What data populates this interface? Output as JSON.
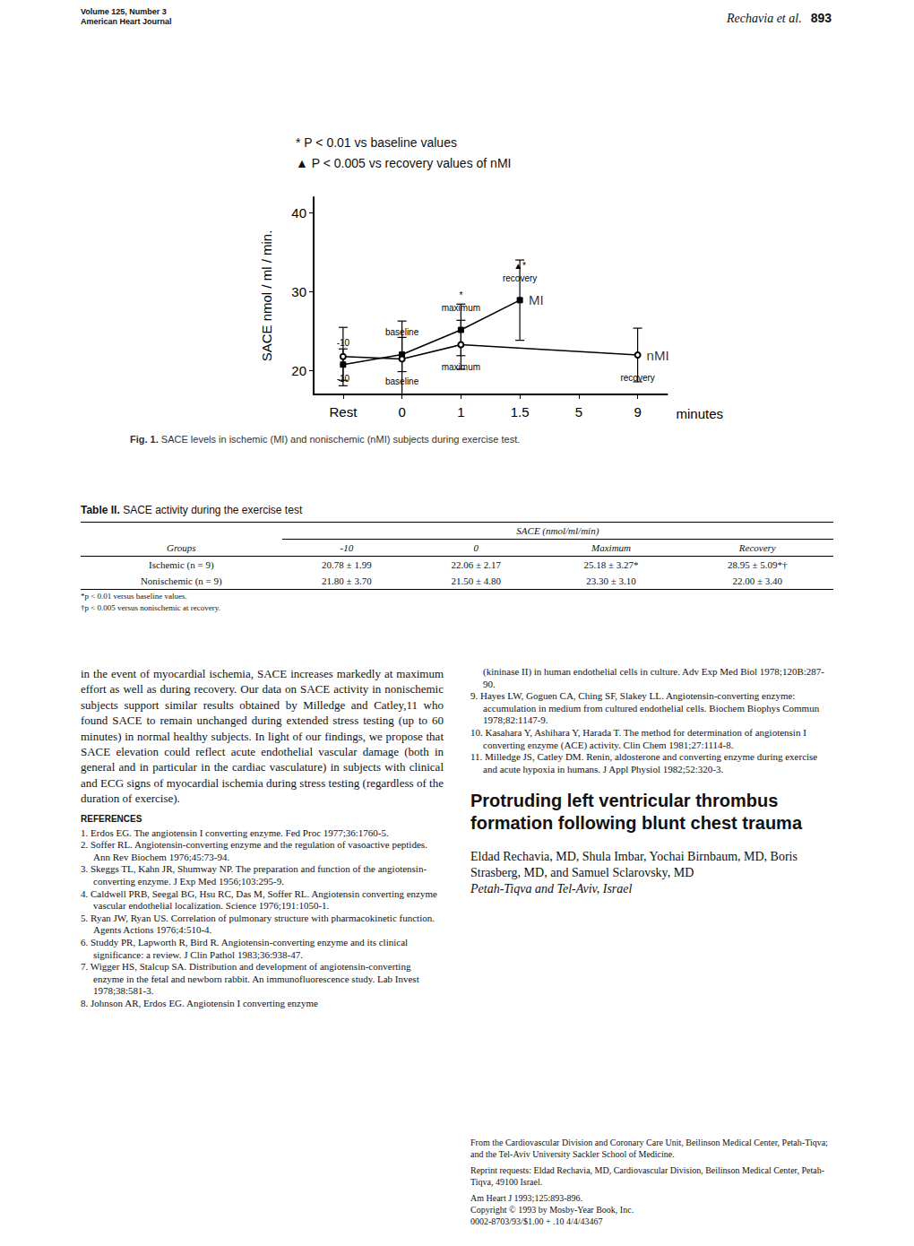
{
  "page": {
    "header": {
      "volume": "Volume 125, Number 3",
      "journal": "American Heart Journal",
      "running_head": "Rechavia et al.",
      "page_number": "893"
    },
    "figure": {
      "label": "Fig. 1.",
      "caption": "SACE levels in ischemic (MI) and nonischemic (nMI) subjects during exercise test."
    },
    "table": {
      "label": "Table II.",
      "title": "SACE activity during the exercise test",
      "group_header": "SACE (nmol/ml/min)",
      "columns": [
        "Groups",
        "-10",
        "0",
        "Maximum",
        "Recovery"
      ],
      "rows": [
        [
          "Ischemic (n = 9)",
          "20.78 ± 1.99",
          "22.06 ± 2.17",
          "25.18 ± 3.27*",
          "28.95 ± 5.09*†"
        ],
        [
          "Nonischemic (n = 9)",
          "21.80 ± 3.70",
          "21.50 ± 4.80",
          "23.30 ± 3.10",
          "22.00 ± 3.40"
        ]
      ],
      "footnotes": [
        "*p < 0.01 versus baseline values.",
        "†p < 0.005 versus nonischemic at recovery."
      ]
    },
    "left_column": {
      "body": "in the event of myocardial ischemia, SACE increases markedly at maximum effort as well as during recovery. Our data on SACE activity in nonischemic subjects support similar results obtained by Milledge and Catley,11 who found SACE to remain unchanged during extended stress testing (up to 60 minutes) in normal healthy subjects. In light of our findings, we propose that SACE elevation could reflect acute endothelial vascular damage (both in general and in particular in the cardiac vasculature) in subjects with clinical and ECG signs of myocardial ischemia during stress testing (regardless of the duration of exercise).",
      "references_heading": "REFERENCES",
      "references": [
        "1. Erdos EG. The angiotensin I converting enzyme. Fed Proc 1977;36:1760-5.",
        "2. Soffer RL. Angiotensin-converting enzyme and the regulation of vasoactive peptides. Ann Rev Biochem 1976;45:73-94.",
        "3. Skeggs TL, Kahn JR, Shumway NP. The preparation and function of the angiotensin-converting enzyme. J Exp Med 1956;103:295-9.",
        "4. Caldwell PRB, Seegal BG, Hsu RC, Das M, Soffer RL. Angiotensin converting enzyme vascular endothelial localization. Science 1976;191:1050-1.",
        "5. Ryan JW, Ryan US. Correlation of pulmonary structure with pharmacokinetic function. Agents Actions 1976;4:510-4.",
        "6. Studdy PR, Lapworth R, Bird R. Angiotensin-converting enzyme and its clinical significance: a review. J Clin Pathol 1983;36:938-47.",
        "7. Wigger HS, Stalcup SA. Distribution and development of angiotensin-converting enzyme in the fetal and newborn rabbit. An immunofluorescence study. Lab Invest 1978;38:581-3.",
        "8. Johnson AR, Erdos EG. Angiotensin I converting enzyme"
      ]
    },
    "right_column": {
      "references": [
        "(kininase II) in human endothelial cells in culture. Adv Exp Med Biol 1978;120B:287-90.",
        "9. Hayes LW, Goguen CA, Ching SF, Slakey LL. Angiotensin-converting enzyme: accumulation in medium from cultured endothelial cells. Biochem Biophys Commun 1978;82:1147-9.",
        "10. Kasahara Y, Ashihara Y, Harada T. The method for determination of angiotensin I converting enzyme (ACE) activity. Clin Chem 1981;27:1114-8.",
        "11. Milledge JS, Catley DM. Renin, aldosterone and converting enzyme during exercise and acute hypoxia in humans. J Appl Physiol 1982;52:320-3."
      ],
      "article_title": "Protruding left ventricular thrombus formation following blunt chest trauma",
      "authors": "Eldad Rechavia, MD, Shula Imbar, Yochai Birnbaum, MD, Boris Strasberg, MD, and Samuel Sclarovsky, MD",
      "location": "Petah-Tiqva and Tel-Aviv, Israel",
      "footnotes": [
        "From the Cardiovascular Division and Coronary Care Unit, Beilinson Medical Center, Petah-Tiqva; and the Tel-Aviv University Sackler School of Medicine.",
        "Reprint requests: Eldad Rechavia, MD, Cardiovascular Division, Beilinson Medical Center, Petah-Tiqva, 49100 Israel.",
        "Am Heart J 1993;125:893-896.",
        "Copyright © 1993 by Mosby-Year Book, Inc.",
        "0002-8703/93/$1.00 + .10 4/4/43467"
      ]
    }
  },
  "chart_data": {
    "type": "line",
    "y_label": "SACE nmol / ml / min.",
    "x_label": "minutes",
    "annotations": [
      "* P < 0.01 vs baseline values",
      "▲ P < 0.005 vs recovery values of nMI"
    ],
    "categories": [
      "Rest",
      "0",
      "1",
      "1.5",
      "5",
      "9"
    ],
    "ylim": [
      17,
      42
    ],
    "yticks": [
      20,
      30,
      40
    ],
    "grid": false,
    "series": [
      {
        "name": "MI",
        "color": "#000000",
        "marker": "square",
        "values": [
          20.78,
          22.06,
          25.18,
          28.95,
          null,
          null
        ],
        "errors": [
          1.99,
          2.17,
          3.27,
          5.09,
          null,
          null
        ],
        "point_labels": [
          "-10",
          "baseline",
          "maximum",
          "recovery",
          null,
          null
        ],
        "significance": [
          null,
          null,
          "*",
          "▲*",
          null,
          null
        ]
      },
      {
        "name": "nMI",
        "color": "#000000",
        "marker": "circle",
        "values": [
          21.8,
          21.5,
          23.3,
          null,
          null,
          22.0
        ],
        "errors": [
          3.7,
          4.8,
          3.1,
          null,
          null,
          3.4
        ],
        "point_labels": [
          "-10",
          "baseline",
          "maximum",
          null,
          null,
          "recovery"
        ],
        "significance": [
          null,
          null,
          null,
          null,
          null,
          null
        ]
      }
    ]
  }
}
